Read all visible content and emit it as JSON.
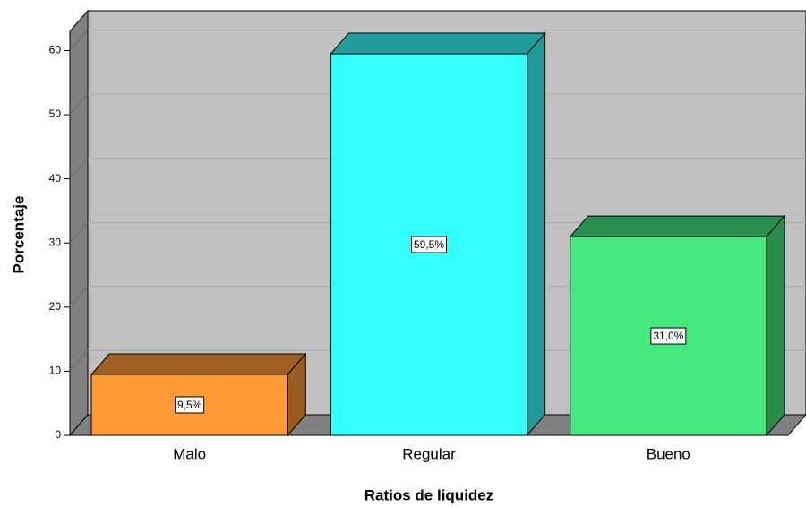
{
  "chart_data": {
    "type": "bar3d",
    "y_label": "Porcentaje",
    "x_label": "Ratios de liquidez",
    "categories": [
      "Malo",
      "Regular",
      "Bueno"
    ],
    "values": [
      9.5,
      59.5,
      31.0
    ],
    "value_labels": [
      "9,5%",
      "59,5%",
      "31,0%"
    ],
    "colors": [
      "#ff9933",
      "#33ffff",
      "#44e87f"
    ],
    "ylim": [
      0,
      63
    ],
    "yticks": [
      0,
      10,
      20,
      30,
      40,
      50,
      60
    ],
    "grid": true
  }
}
